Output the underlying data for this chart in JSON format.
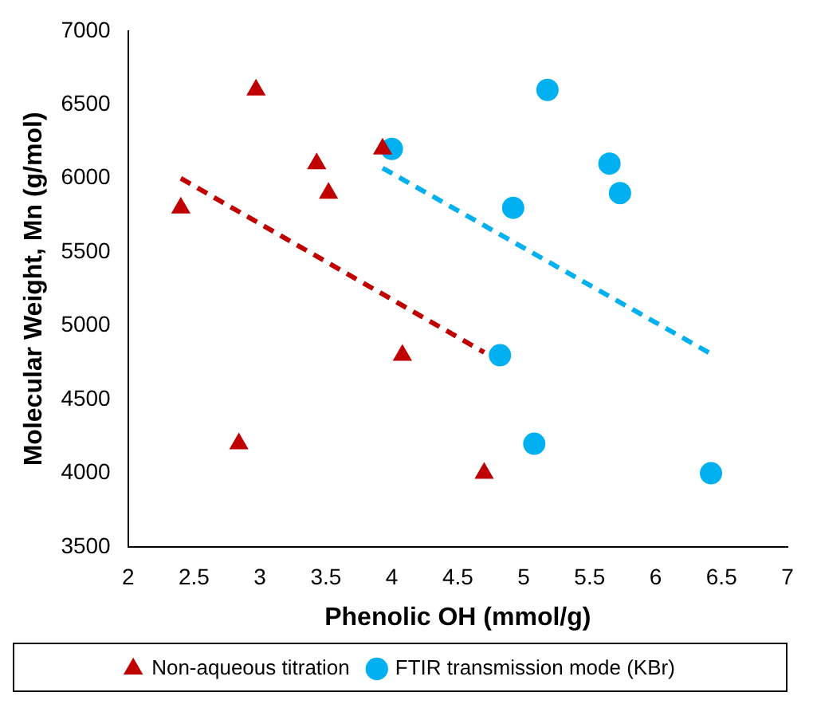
{
  "chart_data": {
    "type": "scatter",
    "xlabel": "Phenolic OH (mmol/g)",
    "ylabel": "Molecular Weight, Mn (g/mol)",
    "xlim": [
      2,
      7
    ],
    "xticks": [
      2,
      2.5,
      3,
      3.5,
      4,
      4.5,
      5,
      5.5,
      6,
      6.5,
      7
    ],
    "ylim": [
      3500,
      7000
    ],
    "yticks": [
      3500,
      4000,
      4500,
      5000,
      5500,
      6000,
      6500,
      7000
    ],
    "grid": false,
    "legend": "bottom",
    "series": [
      {
        "type": "scatter",
        "name": "Non-aqueous titration",
        "color": "#c00000",
        "marker": "triangle",
        "x": [
          2.4,
          2.97,
          3.43,
          3.52,
          3.93,
          4.08,
          2.84,
          4.7
        ],
        "values": [
          5800,
          6600,
          6100,
          5900,
          6200,
          4800,
          4200,
          4000
        ]
      },
      {
        "type": "scatter",
        "name": "FTIR transmission mode (KBr)",
        "color": "#00b0f0",
        "marker": "circle",
        "x": [
          4.0,
          4.92,
          5.18,
          5.65,
          5.73,
          4.82,
          5.08,
          6.42
        ],
        "values": [
          6200,
          5800,
          6600,
          6100,
          5900,
          4800,
          4200,
          4000
        ]
      },
      {
        "type": "line",
        "color": "#c00000",
        "line_style": "dashed",
        "marker": "none",
        "x": [
          2.4,
          4.7
        ],
        "values": [
          6000,
          4820
        ]
      },
      {
        "type": "line",
        "color": "#00b0f0",
        "line_style": "dashed",
        "marker": "none",
        "x": [
          3.93,
          6.42
        ],
        "values": [
          6070,
          4810
        ]
      }
    ]
  }
}
